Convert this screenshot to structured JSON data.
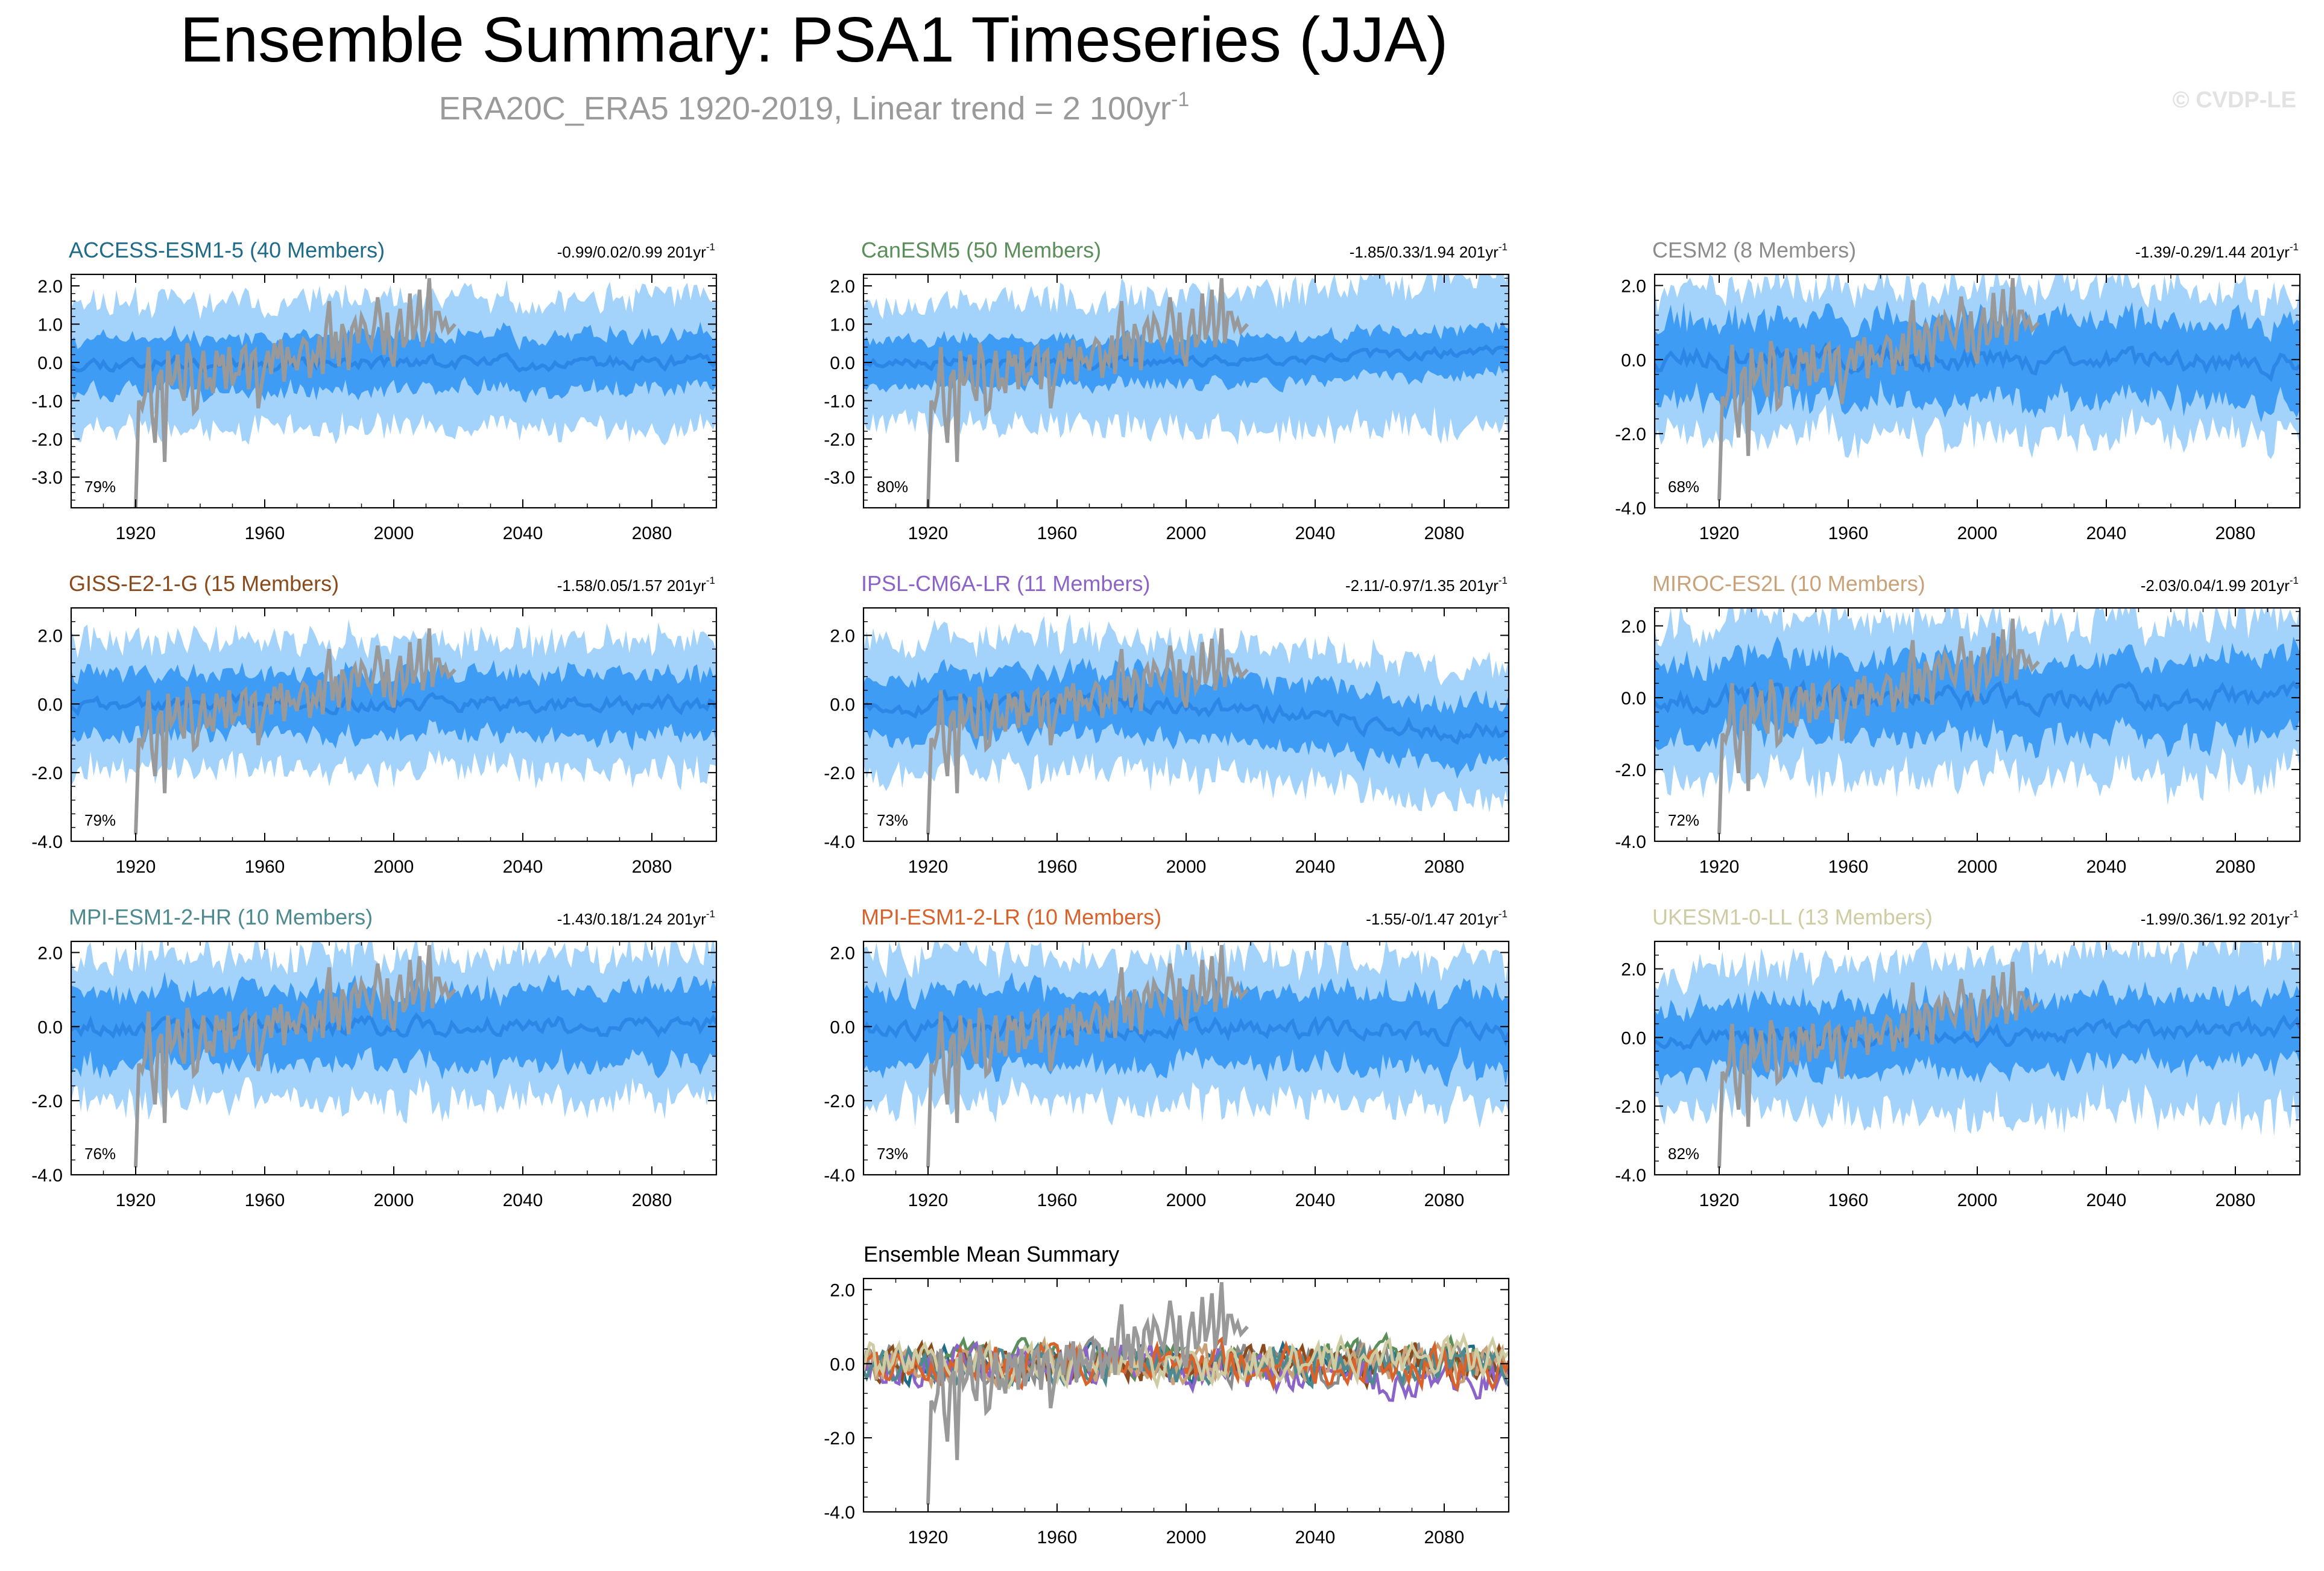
{
  "page": {
    "title": "Ensemble Summary: PSA1 Timeseries (JJA)",
    "subtitle": "ERA20C_ERA5 1920-2019, Linear trend = 2 100yr",
    "subtitle_superscript": "-1",
    "watermark": "© CVDP-LE"
  },
  "colors": {
    "band_outer": "#a3d2fb",
    "band_inner": "#3f9cf5",
    "ensemble_mean": "#2c86e6",
    "observations": "#999999",
    "frame": "#000000"
  },
  "chart_data": [
    {
      "type": "area",
      "title": "ACCESS-ESM1-5 (40 Members)",
      "title_color": "#1f6b8a",
      "trend": "-0.99/0.02/0.99 201yr",
      "trend_sup": "-1",
      "pct": "79%",
      "ylim": [
        -3.8,
        2.3
      ],
      "yticks": [
        2.0,
        1.0,
        0.0,
        -1.0,
        -2.0,
        -3.0
      ],
      "ytick_labels": [
        "2.0",
        "1.0",
        "0.0",
        "-1.0",
        "-2.0",
        "-3.0"
      ],
      "xticks": [
        1920,
        1960,
        2000,
        2040,
        2080
      ],
      "xlim": [
        1900,
        2100
      ],
      "outer_amp": 1.6,
      "inner_amp": 0.7,
      "mean_amp": 0.2,
      "drift": 0.0,
      "seed": 11
    },
    {
      "type": "area",
      "title": "CanESM5 (50 Members)",
      "title_color": "#5a8f5a",
      "trend": "-1.85/0.33/1.94 201yr",
      "trend_sup": "-1",
      "pct": "80%",
      "ylim": [
        -3.8,
        2.3
      ],
      "yticks": [
        2.0,
        1.0,
        0.0,
        -1.0,
        -2.0,
        -3.0
      ],
      "ytick_labels": [
        "2.0",
        "1.0",
        "0.0",
        "-1.0",
        "-2.0",
        "-3.0"
      ],
      "xticks": [
        1920,
        1960,
        2000,
        2040,
        2080
      ],
      "xlim": [
        1900,
        2100
      ],
      "outer_amp": 1.5,
      "inner_amp": 0.6,
      "mean_amp": 0.15,
      "drift": 0.3,
      "seed": 23
    },
    {
      "type": "area",
      "title": "CESM2 (8 Members)",
      "title_color": "#8c8c8c",
      "trend": "-1.39/-0.29/1.44 201yr",
      "trend_sup": "-1",
      "pct": "68%",
      "ylim": [
        -4.0,
        2.3
      ],
      "yticks": [
        2.0,
        0.0,
        -2.0,
        -4.0
      ],
      "ytick_labels": [
        "2.0",
        "0.0",
        "-2.0",
        "-4.0"
      ],
      "xticks": [
        1920,
        1960,
        2000,
        2040,
        2080
      ],
      "xlim": [
        1900,
        2100
      ],
      "outer_amp": 1.9,
      "inner_amp": 1.1,
      "mean_amp": 0.35,
      "drift": -0.1,
      "seed": 37
    },
    {
      "type": "area",
      "title": "GISS-E2-1-G (15 Members)",
      "title_color": "#8a4a1c",
      "trend": "-1.58/0.05/1.57 201yr",
      "trend_sup": "-1",
      "pct": "79%",
      "ylim": [
        -4.0,
        2.8
      ],
      "yticks": [
        2.0,
        0.0,
        -2.0,
        -4.0
      ],
      "ytick_labels": [
        "2.0",
        "0.0",
        "-2.0",
        "-4.0"
      ],
      "xticks": [
        1920,
        1960,
        2000,
        2040,
        2080
      ],
      "xlim": [
        1900,
        2100
      ],
      "outer_amp": 1.8,
      "inner_amp": 0.9,
      "mean_amp": 0.25,
      "drift": 0.0,
      "seed": 41
    },
    {
      "type": "area",
      "title": "IPSL-CM6A-LR (11 Members)",
      "title_color": "#8b63c9",
      "trend": "-2.11/-0.97/1.35 201yr",
      "trend_sup": "-1",
      "pct": "73%",
      "ylim": [
        -4.0,
        2.8
      ],
      "yticks": [
        2.0,
        0.0,
        -2.0,
        -4.0
      ],
      "ytick_labels": [
        "2.0",
        "0.0",
        "-2.0",
        "-4.0"
      ],
      "xticks": [
        1920,
        1960,
        2000,
        2040,
        2080
      ],
      "xlim": [
        1900,
        2100
      ],
      "outer_amp": 1.9,
      "inner_amp": 0.9,
      "mean_amp": 0.3,
      "drift": -0.9,
      "seed": 53
    },
    {
      "type": "area",
      "title": "MIROC-ES2L (10 Members)",
      "title_color": "#c9a27a",
      "trend": "-2.03/0.04/1.99 201yr",
      "trend_sup": "-1",
      "pct": "72%",
      "ylim": [
        -4.0,
        2.5
      ],
      "yticks": [
        2.0,
        0.0,
        -2.0,
        -4.0
      ],
      "ytick_labels": [
        "2.0",
        "0.0",
        "-2.0",
        "-4.0"
      ],
      "xticks": [
        1920,
        1960,
        2000,
        2040,
        2080
      ],
      "xlim": [
        1900,
        2100
      ],
      "outer_amp": 2.1,
      "inner_amp": 1.1,
      "mean_amp": 0.35,
      "drift": 0.0,
      "seed": 67
    },
    {
      "type": "area",
      "title": "MPI-ESM1-2-HR (10 Members)",
      "title_color": "#4d8a8f",
      "trend": "-1.43/0.18/1.24 201yr",
      "trend_sup": "-1",
      "pct": "76%",
      "ylim": [
        -4.0,
        2.3
      ],
      "yticks": [
        2.0,
        0.0,
        -2.0,
        -4.0
      ],
      "ytick_labels": [
        "2.0",
        "0.0",
        "-2.0",
        "-4.0"
      ],
      "xticks": [
        1920,
        1960,
        2000,
        2040,
        2080
      ],
      "xlim": [
        1900,
        2100
      ],
      "outer_amp": 1.9,
      "inner_amp": 1.0,
      "mean_amp": 0.3,
      "drift": 0.0,
      "seed": 79
    },
    {
      "type": "area",
      "title": "MPI-ESM1-2-LR (10 Members)",
      "title_color": "#d8622a",
      "trend": "-1.55/-0/1.47 201yr",
      "trend_sup": "-1",
      "pct": "73%",
      "ylim": [
        -4.0,
        2.3
      ],
      "yticks": [
        2.0,
        0.0,
        -2.0,
        -4.0
      ],
      "ytick_labels": [
        "2.0",
        "0.0",
        "-2.0",
        "-4.0"
      ],
      "xticks": [
        1920,
        1960,
        2000,
        2040,
        2080
      ],
      "xlim": [
        1900,
        2100
      ],
      "outer_amp": 1.9,
      "inner_amp": 1.0,
      "mean_amp": 0.3,
      "drift": -0.2,
      "seed": 83
    },
    {
      "type": "area",
      "title": "UKESM1-0-LL (13 Members)",
      "title_color": "#cfcba3",
      "trend": "-1.99/0.36/1.92 201yr",
      "trend_sup": "-1",
      "pct": "82%",
      "ylim": [
        -4.0,
        2.8
      ],
      "yticks": [
        2.0,
        0.0,
        -2.0,
        -4.0
      ],
      "ytick_labels": [
        "2.0",
        "0.0",
        "-2.0",
        "-4.0"
      ],
      "xticks": [
        1920,
        1960,
        2000,
        2040,
        2080
      ],
      "xlim": [
        1900,
        2100
      ],
      "outer_amp": 1.9,
      "inner_amp": 1.0,
      "mean_amp": 0.3,
      "drift": 0.3,
      "seed": 97
    },
    {
      "type": "line",
      "title": "Ensemble Mean Summary",
      "title_color": "#000000",
      "ylim": [
        -4.0,
        2.3
      ],
      "yticks": [
        2.0,
        0.0,
        -2.0,
        -4.0
      ],
      "ytick_labels": [
        "2.0",
        "0.0",
        "-2.0",
        "-4.0"
      ],
      "xticks": [
        1920,
        1960,
        2000,
        2040,
        2080
      ],
      "xlim": [
        1900,
        2100
      ],
      "series": [
        {
          "name": "ACCESS-ESM1-5",
          "color": "#1f6b8a",
          "seed": 101,
          "drift": 0.0
        },
        {
          "name": "CanESM5",
          "color": "#5a8f5a",
          "seed": 103,
          "drift": 0.2
        },
        {
          "name": "CESM2",
          "color": "#8c8c8c",
          "seed": 107,
          "drift": 0.0
        },
        {
          "name": "GISS-E2-1-G",
          "color": "#8a4a1c",
          "seed": 109,
          "drift": 0.0
        },
        {
          "name": "IPSL-CM6A-LR",
          "color": "#8b63c9",
          "seed": 113,
          "drift": -0.6
        },
        {
          "name": "MIROC-ES2L",
          "color": "#c9a27a",
          "seed": 127,
          "drift": 0.0
        },
        {
          "name": "MPI-ESM1-2-HR",
          "color": "#4d8a8f",
          "seed": 131,
          "drift": 0.0
        },
        {
          "name": "MPI-ESM1-2-LR",
          "color": "#d8622a",
          "seed": 137,
          "drift": -0.1
        },
        {
          "name": "UKESM1-0-LL",
          "color": "#cfcba3",
          "seed": 139,
          "drift": 0.2
        }
      ]
    }
  ],
  "observations": {
    "name": "ERA20C_ERA5",
    "years": [
      1920,
      2019
    ],
    "values": [
      -3.8,
      -1.0,
      -1.2,
      -0.8,
      0.4,
      -1.3,
      -2.1,
      -0.4,
      -0.2,
      -2.6,
      0.3,
      -0.6,
      -0.4,
      0.2,
      -0.7,
      -1.0,
      0.5,
      0.1,
      -1.3,
      -1.2,
      -0.3,
      0.3,
      -0.7,
      -0.4,
      -0.8,
      0.3,
      -0.1,
      0.2,
      -0.7,
      0.4,
      -0.6,
      -0.3,
      -0.3,
      0.3,
      0.4,
      -0.7,
      0.2,
      0.3,
      -1.2,
      -0.6,
      -0.1,
      0.3,
      -0.3,
      0.5,
      0.1,
      0.6,
      -0.5,
      0.4,
      0.0,
      0.1,
      -0.2,
      0.3,
      0.6,
      0.5,
      -0.4,
      0.2,
      0.0,
      0.7,
      -0.3,
      0.9,
      1.6,
      0.1,
      0.8,
      -0.1,
      1.0,
      0.7,
      -0.2,
      0.9,
      1.1,
      0.5,
      1.2,
      1.0,
      0.6,
      0.4,
      1.0,
      1.7,
      1.1,
      0.2,
      1.3,
      0.2,
      -0.1,
      0.9,
      1.4,
      0.4,
      0.6,
      1.8,
      0.6,
      1.0,
      1.9,
      0.4,
      1.0,
      2.2,
      0.5,
      1.3,
      1.3,
      0.9,
      1.1,
      0.8,
      0.9,
      1.0
    ]
  }
}
